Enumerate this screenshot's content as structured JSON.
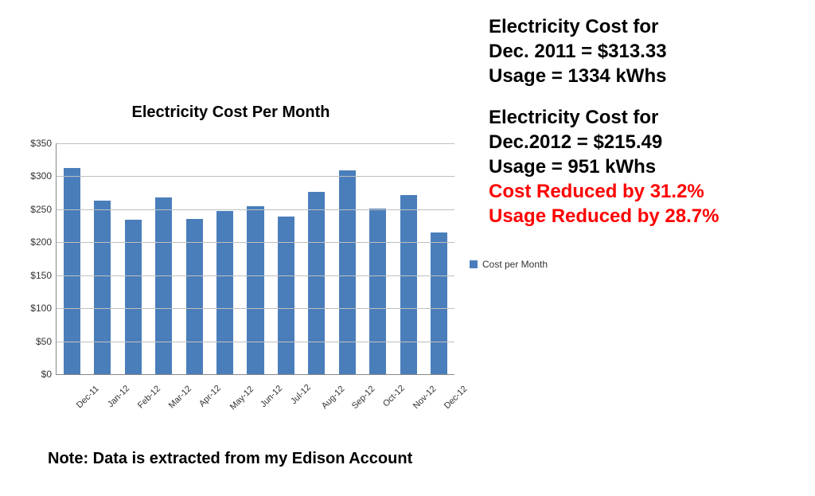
{
  "chart": {
    "type": "bar",
    "title": "Electricity Cost Per Month",
    "title_fontsize": 20,
    "categories": [
      "Dec-11",
      "Jan-12",
      "Feb-12",
      "Mar-12",
      "Apr-12",
      "May-12",
      "Jun-12",
      "Jul-12",
      "Aug-12",
      "Sep-12",
      "Oct-12",
      "Nov-12",
      "Dec-12"
    ],
    "values": [
      313,
      263,
      234,
      268,
      235,
      247,
      255,
      239,
      276,
      309,
      251,
      272,
      215
    ],
    "bar_color": "#4a7ebb",
    "ylim": [
      0,
      350
    ],
    "ytick_step": 50,
    "ytick_labels": [
      "$0",
      "$50",
      "$100",
      "$150",
      "$200",
      "$250",
      "$300",
      "$350"
    ],
    "grid_color": "#bfbfbf",
    "background_color": "#ffffff",
    "bar_width_ratio": 0.55,
    "legend_label": "Cost per Month",
    "legend_swatch_color": "#4a7ebb"
  },
  "note": "Note:  Data is extracted from my Edison Account",
  "side": {
    "block1": {
      "l1": "Electricity Cost for",
      "l2": "Dec. 2011 = $313.33",
      "l3": "Usage = 1334 kWhs"
    },
    "block2": {
      "l1": "Electricity Cost for",
      "l2": "Dec.2012 = $215.49",
      "l3": "Usage = 951 kWhs",
      "l4": "Cost Reduced by 31.2%",
      "l5": "Usage Reduced by 28.7%"
    }
  }
}
